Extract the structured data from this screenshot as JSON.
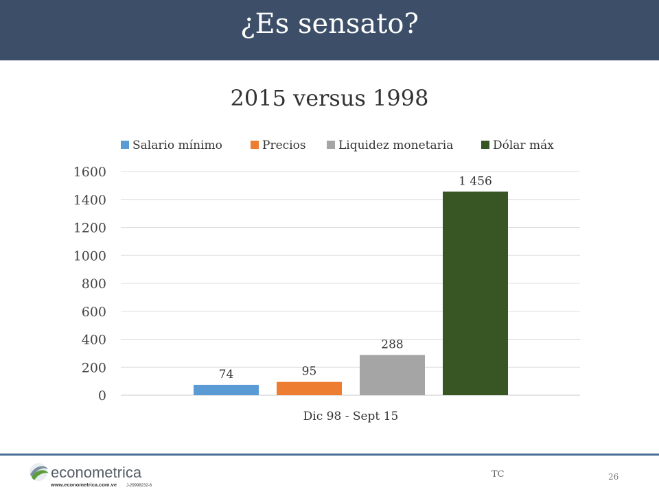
{
  "slide": {
    "title": "¿Es sensato?",
    "footer_text": "TC",
    "page_number": "26"
  },
  "logo": {
    "brand": "econometrica",
    "url_text": "www.econometrica.com.ve",
    "rif": "J-29998232-6"
  },
  "chart_data": {
    "type": "bar",
    "title": "2015 versus 1998",
    "categories": [
      "Dic 98 - Sept 15"
    ],
    "series": [
      {
        "name": "Salario mínimo",
        "values": [
          74
        ],
        "label": "74",
        "color": "#5b9bd5"
      },
      {
        "name": "Precios",
        "values": [
          95
        ],
        "label": "95",
        "color": "#ed7d31"
      },
      {
        "name": "Liquidez monetaria",
        "values": [
          288
        ],
        "label": "288",
        "color": "#a5a5a5"
      },
      {
        "name": "Dólar máx",
        "values": [
          1456
        ],
        "label": "1 456",
        "color": "#375623"
      }
    ],
    "ylim": [
      0,
      1600
    ],
    "yticks": [
      "0",
      "200",
      "400",
      "600",
      "800",
      "1000",
      "1200",
      "1400",
      "1600"
    ],
    "grid": true,
    "legend": "top"
  }
}
